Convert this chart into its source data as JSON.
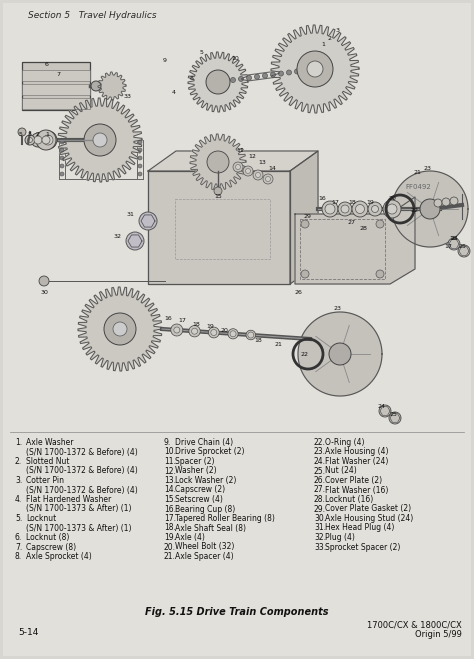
{
  "bg_color": "#d8d6d0",
  "page_bg": "#e2e0da",
  "title_header": "Section 5   Travel Hydraulics",
  "figure_caption": "Fig. 5.15 Drive Train Components",
  "page_number": "5-14",
  "model_info_line1": "1700C/CX & 1800C/CX",
  "model_info_line2": "Origin 5/99",
  "diagram_ref": "FF0492",
  "parts_col1": [
    [
      "1.",
      "Axle Washer"
    ],
    [
      "",
      "(S/N 1700-1372 & Before) (4)"
    ],
    [
      "2.",
      "Slotted Nut"
    ],
    [
      "",
      "(S/N 1700-1372 & Before) (4)"
    ],
    [
      "3.",
      "Cotter Pin"
    ],
    [
      "",
      "(S/N 1700-1372 & Before) (4)"
    ],
    [
      "4.",
      "Flat Hardened Washer"
    ],
    [
      "",
      "(S/N 1700-1373 & After) (1)"
    ],
    [
      "5.",
      "Locknut"
    ],
    [
      "",
      "(S/N 1700-1373 & After) (1)"
    ],
    [
      "6.",
      "Locknut (8)"
    ],
    [
      "7.",
      "Capscrew (8)"
    ],
    [
      "8.",
      "Axle Sprocket (4)"
    ]
  ],
  "parts_col2": [
    [
      "9.",
      "Drive Chain (4)"
    ],
    [
      "10.",
      "Drive Sprocket (2)"
    ],
    [
      "11.",
      "Spacer (2)"
    ],
    [
      "12.",
      "Washer (2)"
    ],
    [
      "13.",
      "Lock Washer (2)"
    ],
    [
      "14.",
      "Capscrew (2)"
    ],
    [
      "15.",
      "Setscrew (4)"
    ],
    [
      "16.",
      "Bearing Cup (8)"
    ],
    [
      "17.",
      "Tapered Roller Bearing (8)"
    ],
    [
      "18.",
      "Axle Shaft Seal (8)"
    ],
    [
      "19.",
      "Axle (4)"
    ],
    [
      "20.",
      "Wheel Bolt (32)"
    ],
    [
      "21.",
      "Axle Spacer (4)"
    ]
  ],
  "parts_col3": [
    [
      "22.",
      "O-Ring (4)"
    ],
    [
      "23.",
      "Axle Housing (4)"
    ],
    [
      "24.",
      "Flat Washer (24)"
    ],
    [
      "25.",
      "Nut (24)"
    ],
    [
      "26.",
      "Cover Plate (2)"
    ],
    [
      "27.",
      "Flat Washer (16)"
    ],
    [
      "28.",
      "Locknut (16)"
    ],
    [
      "29.",
      "Cover Plate Gasket (2)"
    ],
    [
      "30.",
      "Axle Housing Stud (24)"
    ],
    [
      "31.",
      "Hex Head Plug (4)"
    ],
    [
      "32.",
      "Plug (4)"
    ],
    [
      "33.",
      "Sprocket Spacer (2)"
    ]
  ],
  "header_fontsize": 6.5,
  "parts_fontsize": 5.5,
  "caption_fontsize": 7,
  "pagenum_fontsize": 6.5,
  "model_fontsize": 6.0,
  "ref_fontsize": 5.0
}
